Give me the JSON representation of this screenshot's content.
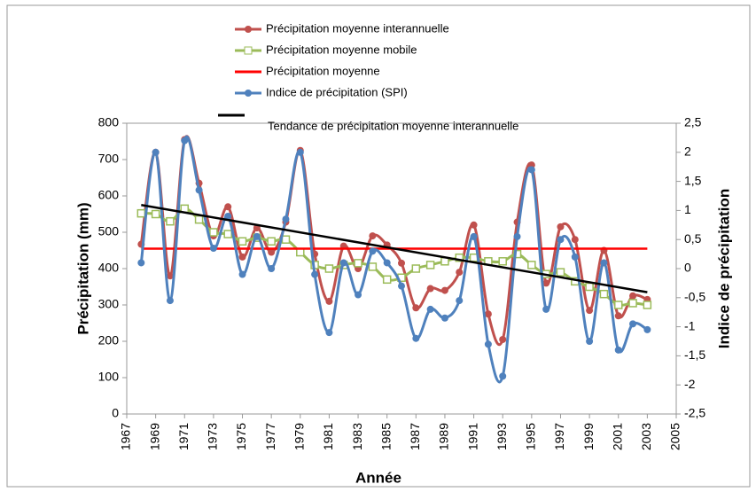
{
  "chart_data": {
    "type": "line",
    "x": [
      1968,
      1969,
      1970,
      1971,
      1972,
      1973,
      1974,
      1975,
      1976,
      1977,
      1978,
      1979,
      1980,
      1981,
      1982,
      1983,
      1984,
      1985,
      1986,
      1987,
      1988,
      1989,
      1990,
      1991,
      1992,
      1993,
      1994,
      1995,
      1996,
      1997,
      1998,
      1999,
      2000,
      2001,
      2002,
      2003
    ],
    "x_label": "Année",
    "y_label": "Précipitation (mm)",
    "y2_label": "Indice de précipitation",
    "xlim": [
      1967,
      2005
    ],
    "xticks": [
      1967,
      1969,
      1971,
      1973,
      1975,
      1977,
      1979,
      1981,
      1983,
      1985,
      1987,
      1989,
      1991,
      1993,
      1995,
      1997,
      1999,
      2001,
      2003,
      2005
    ],
    "ylim": [
      0,
      800
    ],
    "yticks": [
      0,
      100,
      200,
      300,
      400,
      500,
      600,
      700,
      800
    ],
    "y2lim": [
      -2.5,
      2.5
    ],
    "y2ticks": [
      {
        "value": -2.5,
        "label": "-2,5"
      },
      -2,
      {
        "value": -1.5,
        "label": "-1,5"
      },
      -1,
      {
        "value": -0.5,
        "label": "-0,5"
      },
      0,
      {
        "value": 0.5,
        "label": "0,5"
      },
      1,
      {
        "value": 1.5,
        "label": "1,5"
      },
      2,
      {
        "value": 2.5,
        "label": "2,5"
      }
    ],
    "series": [
      {
        "name": "Précipitation moyenne interannuelle",
        "color": "#c0504d",
        "marker": "circle",
        "values": [
          467,
          720,
          380,
          755,
          635,
          490,
          570,
          432,
          512,
          445,
          528,
          725,
          440,
          310,
          462,
          400,
          490,
          465,
          415,
          292,
          345,
          340,
          390,
          520,
          275,
          205,
          528,
          685,
          360,
          515,
          480,
          285,
          450,
          270,
          325,
          315
        ]
      },
      {
        "name": "Précipitation moyenne mobile",
        "color": "#9bbb59",
        "marker": "square",
        "values": [
          552,
          550,
          530,
          565,
          535,
          500,
          495,
          475,
          485,
          475,
          480,
          445,
          410,
          400,
          410,
          415,
          405,
          370,
          375,
          400,
          410,
          420,
          430,
          430,
          420,
          420,
          440,
          410,
          385,
          390,
          365,
          350,
          330,
          300,
          305,
          300
        ]
      },
      {
        "name": "Précipitation moyenne",
        "color": "#ff0000",
        "value": 455
      },
      {
        "name": "Indice de précipitation (SPI)",
        "color": "#4f81bd",
        "marker": "circle",
        "axis": "y2",
        "values": [
          0.1,
          2.0,
          -0.55,
          2.2,
          1.35,
          0.35,
          0.9,
          -0.1,
          0.55,
          0.0,
          0.85,
          2.0,
          -0.1,
          -1.1,
          0.1,
          -0.45,
          0.3,
          0.1,
          -0.3,
          -1.2,
          -0.7,
          -0.85,
          -0.55,
          0.55,
          -1.3,
          -1.85,
          0.55,
          1.7,
          -0.7,
          0.5,
          0.2,
          -1.25,
          0.1,
          -1.4,
          -0.95,
          -1.05
        ]
      },
      {
        "name": "Tendance de précipitation moyenne interannuelle",
        "color": "#000000",
        "x": [
          1968,
          2003
        ],
        "values": [
          575,
          335
        ]
      }
    ]
  }
}
